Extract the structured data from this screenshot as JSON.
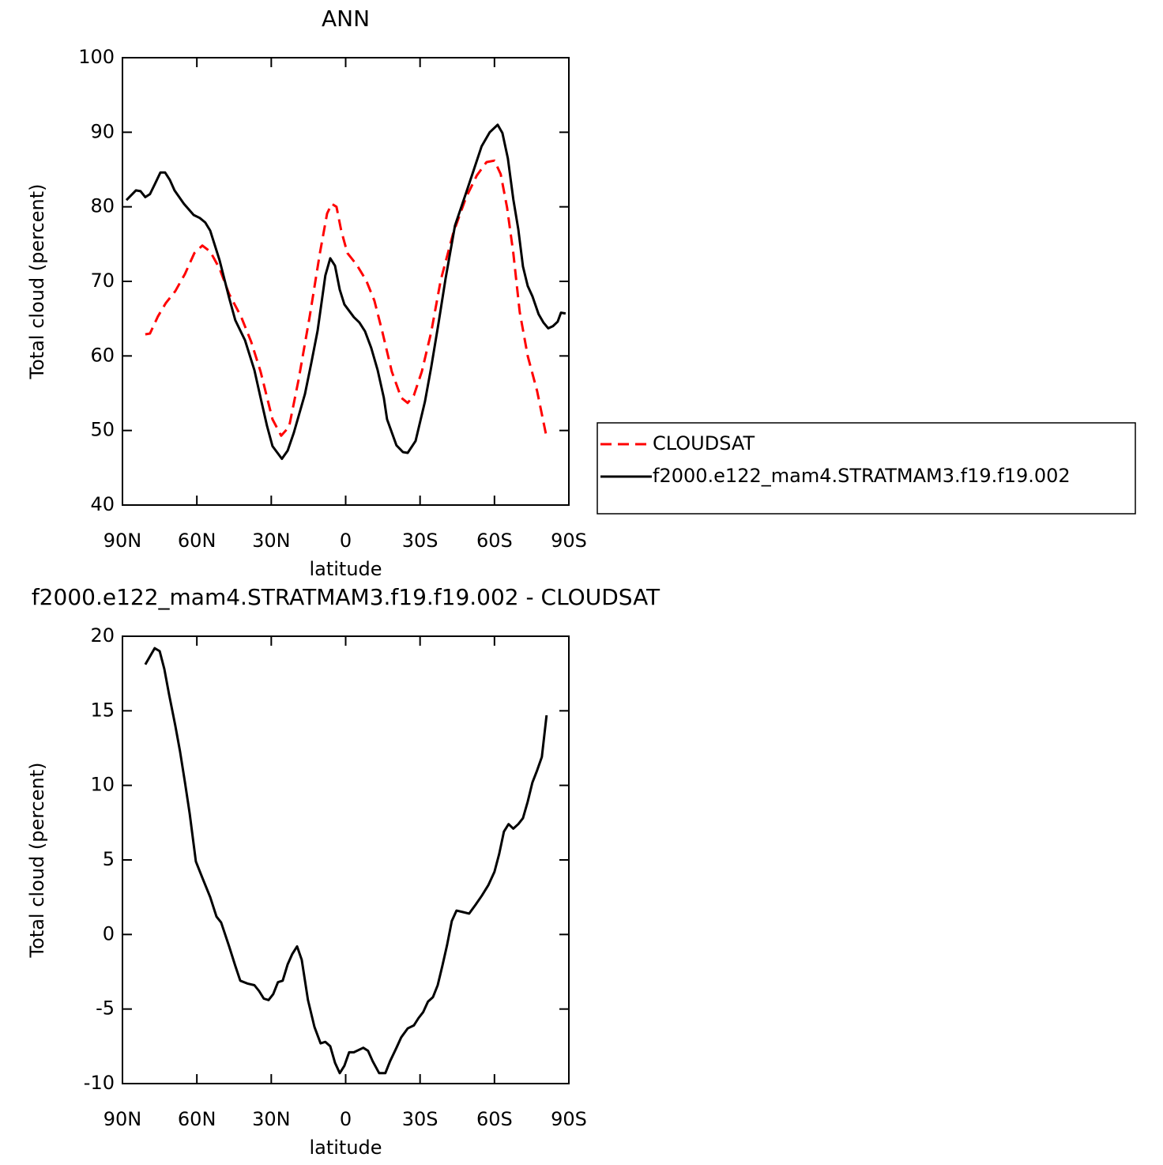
{
  "chart_data": [
    {
      "type": "line",
      "title": "ANN",
      "xlabel": "latitude",
      "ylabel": "Total cloud (percent)",
      "xlim": [
        90,
        -90
      ],
      "xticks": [
        {
          "value": 90,
          "label": "90N"
        },
        {
          "value": 60,
          "label": "60N"
        },
        {
          "value": 30,
          "label": "30N"
        },
        0,
        {
          "value": -30,
          "label": "30S"
        },
        {
          "value": -60,
          "label": "60S"
        },
        {
          "value": -90,
          "label": "90S"
        }
      ],
      "ylim": [
        40,
        100
      ],
      "yticks": [
        40,
        50,
        60,
        70,
        80,
        90,
        100
      ],
      "legend": "right",
      "series": [
        {
          "name": "CLOUDSAT",
          "color": "#ff0000",
          "dashed": true,
          "x": [
            80.8,
            78.9,
            75.7,
            72.5,
            68.7,
            64.8,
            61,
            57.8,
            54.6,
            50.8,
            47,
            42.2,
            38.1,
            34.3,
            29.5,
            26,
            22.8,
            19,
            14.5,
            10.4,
            7.5,
            5.6,
            3.7,
            1.8,
            -0.7,
            -4.5,
            -8.3,
            -11.6,
            -14.8,
            -18.6,
            -22.4,
            -25,
            -27.5,
            -30.7,
            -34.5,
            -38.3,
            -43.4,
            -48.5,
            -52.9,
            -56.8,
            -60,
            -62.5,
            -65.1,
            -67.6,
            -70.2,
            -73.4,
            -77.2,
            -81
          ],
          "values": [
            62.9,
            63,
            65.3,
            67.1,
            68.7,
            71,
            73.8,
            74.8,
            74,
            71.7,
            68.3,
            65.3,
            61.9,
            57.9,
            51.5,
            49.3,
            50.5,
            56.8,
            65.3,
            73.8,
            79.1,
            80.4,
            80,
            76.8,
            73.8,
            72.2,
            70.1,
            67.4,
            63.2,
            57.9,
            54.4,
            53.7,
            54.7,
            57.9,
            63.2,
            70.1,
            76.5,
            81.2,
            84.2,
            86,
            86.2,
            84.4,
            79.9,
            73.8,
            65.9,
            60,
            55.3,
            49.1
          ]
        },
        {
          "name": "f2000.e122_mam4.STRATMAM3.f19.f19.002",
          "color": "#000000",
          "dashed": false,
          "x": [
            88.4,
            84.6,
            82.7,
            80.8,
            78.9,
            77,
            74.7,
            72.8,
            70.9,
            69,
            65.2,
            61.3,
            58.8,
            56.6,
            54.6,
            50.8,
            47,
            44.5,
            40.6,
            36.8,
            34.3,
            31.7,
            29.5,
            25.7,
            23.4,
            20.9,
            16.4,
            13.9,
            11.3,
            8.2,
            6.2,
            4.3,
            2.4,
            0.5,
            -3.3,
            -5.5,
            -7.8,
            -10.3,
            -12.9,
            -15.4,
            -16.7,
            -20.5,
            -23.1,
            -25,
            -28.2,
            -32,
            -34.5,
            -37.4,
            -40.3,
            -44.1,
            -48.5,
            -51.7,
            -54.8,
            -58.1,
            -61.3,
            -63.2,
            -65.4,
            -67.6,
            -69.6,
            -71.5,
            -73.4,
            -75.3,
            -77.8,
            -79.7,
            -81.7,
            -83.6,
            -85.5,
            -86.8,
            -88.7
          ],
          "values": [
            80.9,
            82.2,
            82.1,
            81.3,
            81.7,
            83,
            84.6,
            84.6,
            83.6,
            82.2,
            80.4,
            78.9,
            78.5,
            77.9,
            76.8,
            72.8,
            67.8,
            64.8,
            62.1,
            58.1,
            54.4,
            50.6,
            47.9,
            46.2,
            47.3,
            49.7,
            54.9,
            59,
            63.4,
            70.8,
            73.1,
            72.1,
            68.9,
            66.9,
            65.2,
            64.5,
            63.3,
            61.1,
            58.1,
            54.4,
            51.5,
            48,
            47.1,
            47,
            48.6,
            53.9,
            58.5,
            64.3,
            70.4,
            77.5,
            81.8,
            85,
            88.1,
            90,
            91,
            89.9,
            86.5,
            81,
            77,
            72,
            69.4,
            68,
            65.6,
            64.5,
            63.7,
            64,
            64.6,
            65.8,
            65.7
          ]
        }
      ]
    },
    {
      "type": "line",
      "title": "f2000.e122_mam4.STRATMAM3.f19.f19.002 - CLOUDSAT",
      "xlabel": "latitude",
      "ylabel": "Total cloud (percent)",
      "xlim": [
        90,
        -90
      ],
      "xticks": [
        {
          "value": 90,
          "label": "90N"
        },
        {
          "value": 60,
          "label": "60N"
        },
        {
          "value": 30,
          "label": "30N"
        },
        0,
        {
          "value": -30,
          "label": "30S"
        },
        {
          "value": -60,
          "label": "60S"
        },
        {
          "value": -90,
          "label": "90S"
        }
      ],
      "ylim": [
        -10,
        20
      ],
      "yticks": [
        -10,
        -5,
        0,
        5,
        10,
        15,
        20
      ],
      "series": [
        {
          "color": "#000000",
          "dashed": false,
          "x": [
            80.8,
            77,
            75,
            73.1,
            71.2,
            68.7,
            66.8,
            64.8,
            62.9,
            60.4,
            57.8,
            54.6,
            52.1,
            50.2,
            47,
            44.5,
            42.5,
            39.4,
            36.8,
            34.9,
            33,
            31.1,
            29.2,
            27.3,
            25.4,
            23.4,
            21.5,
            19.6,
            17.7,
            15.2,
            12.6,
            10.1,
            8.2,
            6.2,
            4.3,
            2.4,
            0.5,
            -1.4,
            -3.3,
            -7.1,
            -9,
            -10.9,
            -13.5,
            -16,
            -17.9,
            -20.5,
            -22.4,
            -25,
            -27.5,
            -29.4,
            -31.3,
            -33.2,
            -35.2,
            -37.1,
            -39,
            -40.9,
            -42.8,
            -44.7,
            -47.3,
            -49.8,
            -52.4,
            -54.9,
            -57.5,
            -60,
            -61.9,
            -63.8,
            -65.7,
            -67.6,
            -69.6,
            -71.5,
            -73.4,
            -75.3,
            -77.2,
            -79.1,
            -81
          ],
          "values": [
            18.1,
            19.2,
            19,
            17.8,
            16.1,
            14,
            12.3,
            10.2,
            8.1,
            4.9,
            3.8,
            2.5,
            1.2,
            0.8,
            -0.8,
            -2.1,
            -3.1,
            -3.3,
            -3.4,
            -3.8,
            -4.3,
            -4.4,
            -4,
            -3.2,
            -3.1,
            -2,
            -1.3,
            -0.8,
            -1.7,
            -4.4,
            -6.2,
            -7.3,
            -7.2,
            -7.5,
            -8.6,
            -9.3,
            -8.8,
            -7.9,
            -7.9,
            -7.6,
            -7.8,
            -8.5,
            -9.3,
            -9.3,
            -8.5,
            -7.6,
            -6.9,
            -6.3,
            -6.1,
            -5.6,
            -5.2,
            -4.5,
            -4.2,
            -3.4,
            -2.1,
            -0.7,
            0.9,
            1.6,
            1.5,
            1.4,
            2,
            2.6,
            3.3,
            4.2,
            5.4,
            6.9,
            7.4,
            7.1,
            7.4,
            7.8,
            8.9,
            10.2,
            11,
            11.9,
            14.7
          ]
        }
      ]
    }
  ]
}
